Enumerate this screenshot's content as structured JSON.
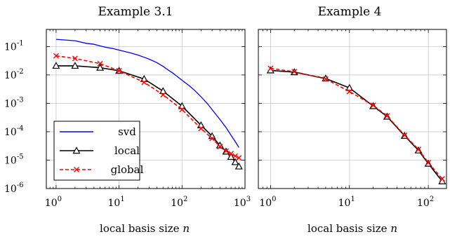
{
  "chart_data": [
    {
      "type": "line",
      "title": "Example 3.1",
      "xlabel": "local basis size n",
      "ylabel": "",
      "xscale": "log",
      "yscale": "log",
      "xlim": [
        0.7,
        1000
      ],
      "ylim": [
        1e-06,
        0.4
      ],
      "xticks": [
        1,
        10,
        100,
        1000
      ],
      "yticks": [
        1e-06,
        1e-05,
        0.0001,
        0.001,
        0.01,
        0.1
      ],
      "grid": true,
      "legend_position": "bottom-left",
      "series": [
        {
          "name": "svd",
          "color": "#0000ff",
          "marker": "none",
          "dash": "solid",
          "x": [
            1,
            2,
            3,
            4,
            5,
            6,
            8,
            10,
            13,
            16,
            20,
            25,
            30,
            40,
            50,
            60,
            70,
            80,
            100,
            130,
            160,
            200,
            250,
            300,
            400,
            500,
            600,
            700,
            800
          ],
          "y": [
            0.18,
            0.16,
            0.13,
            0.12,
            0.105,
            0.095,
            0.085,
            0.075,
            0.065,
            0.058,
            0.05,
            0.042,
            0.036,
            0.027,
            0.02,
            0.015,
            0.012,
            0.0095,
            0.0065,
            0.0042,
            0.0028,
            0.0017,
            0.001,
            0.0006,
            0.00027,
            0.00014,
            7.5e-05,
            4.5e-05,
            2.8e-05
          ]
        },
        {
          "name": "local",
          "color": "#000000",
          "marker": "triangle",
          "dash": "solid",
          "x": [
            1,
            2,
            5,
            10,
            25,
            50,
            100,
            200,
            300,
            400,
            500,
            600,
            700,
            800
          ],
          "y": [
            0.021,
            0.021,
            0.018,
            0.014,
            0.0072,
            0.0027,
            0.0008,
            0.00017,
            7e-05,
            3.3e-05,
            2e-05,
            1.3e-05,
            8.5e-06,
            6e-06
          ]
        },
        {
          "name": "global",
          "color": "#ff0000",
          "marker": "x",
          "dash": "dashed",
          "x": [
            1,
            2,
            5,
            10,
            25,
            50,
            100,
            200,
            300,
            400,
            500,
            600,
            700,
            800
          ],
          "y": [
            0.047,
            0.038,
            0.025,
            0.014,
            0.0055,
            0.002,
            0.0006,
            0.00013,
            5.8e-05,
            3e-05,
            2.1e-05,
            1.7e-05,
            1.4e-05,
            1.2e-05
          ]
        }
      ]
    },
    {
      "type": "line",
      "title": "Example 4",
      "xlabel": "local basis size n",
      "ylabel": "",
      "xscale": "log",
      "yscale": "log",
      "xlim": [
        0.7,
        170
      ],
      "ylim": [
        1e-06,
        0.4
      ],
      "xticks": [
        1,
        10,
        100
      ],
      "yticks": [
        1e-06,
        1e-05,
        0.0001,
        0.001,
        0.01,
        0.1
      ],
      "grid": true,
      "series": [
        {
          "name": "local",
          "color": "#000000",
          "marker": "triangle",
          "dash": "solid",
          "x": [
            1,
            2,
            5,
            10,
            20,
            30,
            50,
            75,
            100,
            150
          ],
          "y": [
            0.0145,
            0.0125,
            0.0075,
            0.0035,
            0.0008,
            0.00034,
            7.2e-05,
            2.2e-05,
            7.5e-06,
            1.8e-06
          ]
        },
        {
          "name": "global",
          "color": "#ff0000",
          "marker": "x",
          "dash": "dashed",
          "x": [
            1,
            2,
            5,
            10,
            20,
            30,
            50,
            75,
            100,
            150
          ],
          "y": [
            0.017,
            0.013,
            0.0072,
            0.0026,
            0.00085,
            0.00036,
            7.5e-05,
            2.4e-05,
            8.2e-06,
            2.2e-06
          ]
        }
      ]
    }
  ]
}
